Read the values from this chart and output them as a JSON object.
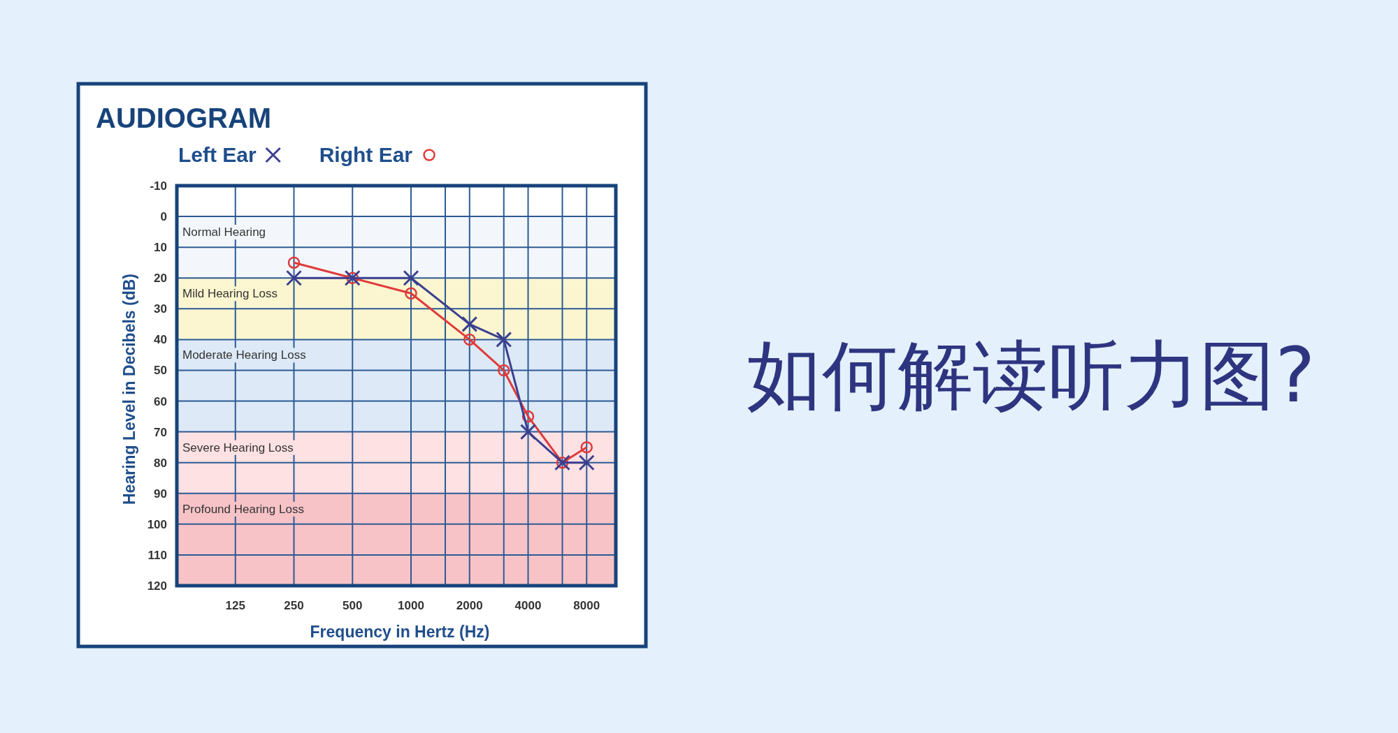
{
  "chart_data": {
    "type": "line",
    "title": "AUDIOGRAM",
    "xlabel": "Frequency in Hertz (Hz)",
    "ylabel": "Hearing Level in Decibels (dB)",
    "annotations": [
      "如何解读听力图?"
    ],
    "log": "x",
    "xlim": [
      62.5,
      11300
    ],
    "xticks": [
      125,
      250,
      500,
      1000,
      2000,
      4000,
      8000,
      {
        "value": 1500,
        "label": null
      },
      {
        "value": 3000,
        "label": null
      },
      {
        "value": 6000,
        "label": null
      }
    ],
    "ylim": [
      120,
      -10
    ],
    "yticks": [
      -10,
      0,
      10,
      20,
      30,
      40,
      50,
      60,
      70,
      80,
      90,
      100,
      110,
      120
    ],
    "grid": true,
    "legend": "top",
    "x": [
      250,
      500,
      1000,
      2000,
      3000,
      4000,
      6000,
      8000
    ],
    "series": [
      {
        "name": "Left Ear",
        "color": "#3b3f8f",
        "marker": "cross",
        "values": [
          20,
          20,
          20,
          35,
          40,
          70,
          80,
          80
        ]
      },
      {
        "name": "Right Ear",
        "color": "#e03a3a",
        "marker": "circle",
        "values": [
          15,
          20,
          25,
          40,
          50,
          65,
          80,
          75
        ]
      }
    ],
    "bands": [
      {
        "axis": "y",
        "from": 0,
        "to": 20,
        "label": "Normal Hearing",
        "color": "#f3f7fc"
      },
      {
        "axis": "y",
        "from": 20,
        "to": 40,
        "label": "Mild Hearing Loss",
        "color": "#fbf6cf"
      },
      {
        "axis": "y",
        "from": 40,
        "to": 70,
        "label": "Moderate Hearing Loss",
        "color": "#dde9f6"
      },
      {
        "axis": "y",
        "from": 70,
        "to": 90,
        "label": "Severe Hearing Loss",
        "color": "#fde1e3"
      },
      {
        "axis": "y",
        "from": 90,
        "to": 120,
        "label": "Profound Hearing Loss",
        "color": "#f7c3c7"
      }
    ]
  }
}
